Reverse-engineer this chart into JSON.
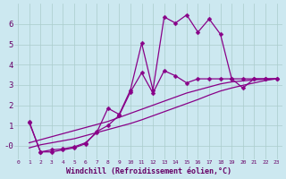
{
  "background_color": "#cce8f0",
  "grid_color": "#aacccc",
  "line_color": "#880088",
  "series": [
    {
      "x": [
        1,
        2,
        3,
        4,
        5,
        6,
        7,
        8,
        9,
        10,
        11,
        12,
        13,
        14,
        15,
        16,
        17,
        18,
        19,
        20,
        21,
        22,
        23
      ],
      "y": [
        1.2,
        -0.3,
        -0.2,
        -0.15,
        -0.05,
        0.15,
        0.65,
        1.85,
        1.55,
        2.75,
        5.05,
        2.75,
        6.35,
        6.05,
        6.45,
        5.6,
        6.25,
        5.5,
        3.3,
        2.85,
        3.3,
        3.3,
        3.3
      ]
    },
    {
      "x": [
        1,
        2,
        3,
        4,
        5,
        6,
        7,
        8,
        9,
        10,
        11,
        12,
        13,
        14,
        15,
        16,
        17,
        18,
        19,
        20,
        21,
        22,
        23
      ],
      "y": [
        1.15,
        -0.3,
        -0.3,
        -0.2,
        -0.1,
        0.1,
        0.7,
        1.0,
        1.5,
        2.65,
        3.6,
        2.6,
        3.7,
        3.45,
        3.1,
        3.3,
        3.3,
        3.3,
        3.3,
        3.3,
        3.3,
        3.3,
        3.3
      ]
    },
    {
      "x": [
        1,
        2,
        3,
        4,
        5,
        6,
        7,
        8,
        9,
        10,
        11,
        12,
        13,
        14,
        15,
        16,
        17,
        18,
        19,
        20,
        21,
        22,
        23
      ],
      "y": [
        0.15,
        0.3,
        0.45,
        0.6,
        0.75,
        0.9,
        1.05,
        1.2,
        1.4,
        1.6,
        1.8,
        2.0,
        2.2,
        2.4,
        2.6,
        2.75,
        2.9,
        3.05,
        3.15,
        3.2,
        3.25,
        3.28,
        3.3
      ]
    },
    {
      "x": [
        1,
        2,
        3,
        4,
        5,
        6,
        7,
        8,
        9,
        10,
        11,
        12,
        13,
        14,
        15,
        16,
        17,
        18,
        19,
        20,
        21,
        22,
        23
      ],
      "y": [
        -0.1,
        0.05,
        0.15,
        0.25,
        0.35,
        0.5,
        0.65,
        0.8,
        0.95,
        1.1,
        1.28,
        1.48,
        1.68,
        1.88,
        2.08,
        2.28,
        2.5,
        2.7,
        2.85,
        2.98,
        3.1,
        3.22,
        3.3
      ]
    }
  ],
  "xlabel": "Windchill (Refroidissement éolien,°C)",
  "xlim": [
    -0.3,
    23.5
  ],
  "ylim": [
    -0.65,
    7.0
  ],
  "yticks": [
    0,
    1,
    2,
    3,
    4,
    5,
    6
  ],
  "ytick_labels": [
    "-0",
    "1",
    "2",
    "3",
    "4",
    "5",
    "6"
  ],
  "xticks": [
    0,
    1,
    2,
    3,
    4,
    5,
    6,
    7,
    8,
    9,
    10,
    11,
    12,
    13,
    14,
    15,
    16,
    17,
    18,
    19,
    20,
    21,
    22,
    23
  ],
  "tick_color": "#660066",
  "xlabel_color": "#660066",
  "marker": "D",
  "markersize": 2.5,
  "linewidth": 0.9
}
